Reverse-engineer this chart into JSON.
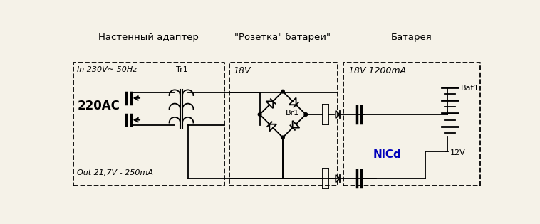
{
  "bg_color": "#f5f2e8",
  "line_color": "#000000",
  "title1": "Настенный адаптер",
  "title2": "\"Розетка\" батареи\"",
  "title3": "Батарея",
  "label_in": "In 230V~ 50Hz",
  "label_tr1": "Tr1",
  "label_220ac": "220AC",
  "label_out": "Out 21,7V - 250mA",
  "label_18v": "18V",
  "label_br1": "Br1",
  "label_18v_1200ma": "18V 1200mA",
  "label_bat1": "Bat1",
  "label_12v": "12V",
  "label_nicd": "NiCd",
  "nicd_color": "#0000bb"
}
